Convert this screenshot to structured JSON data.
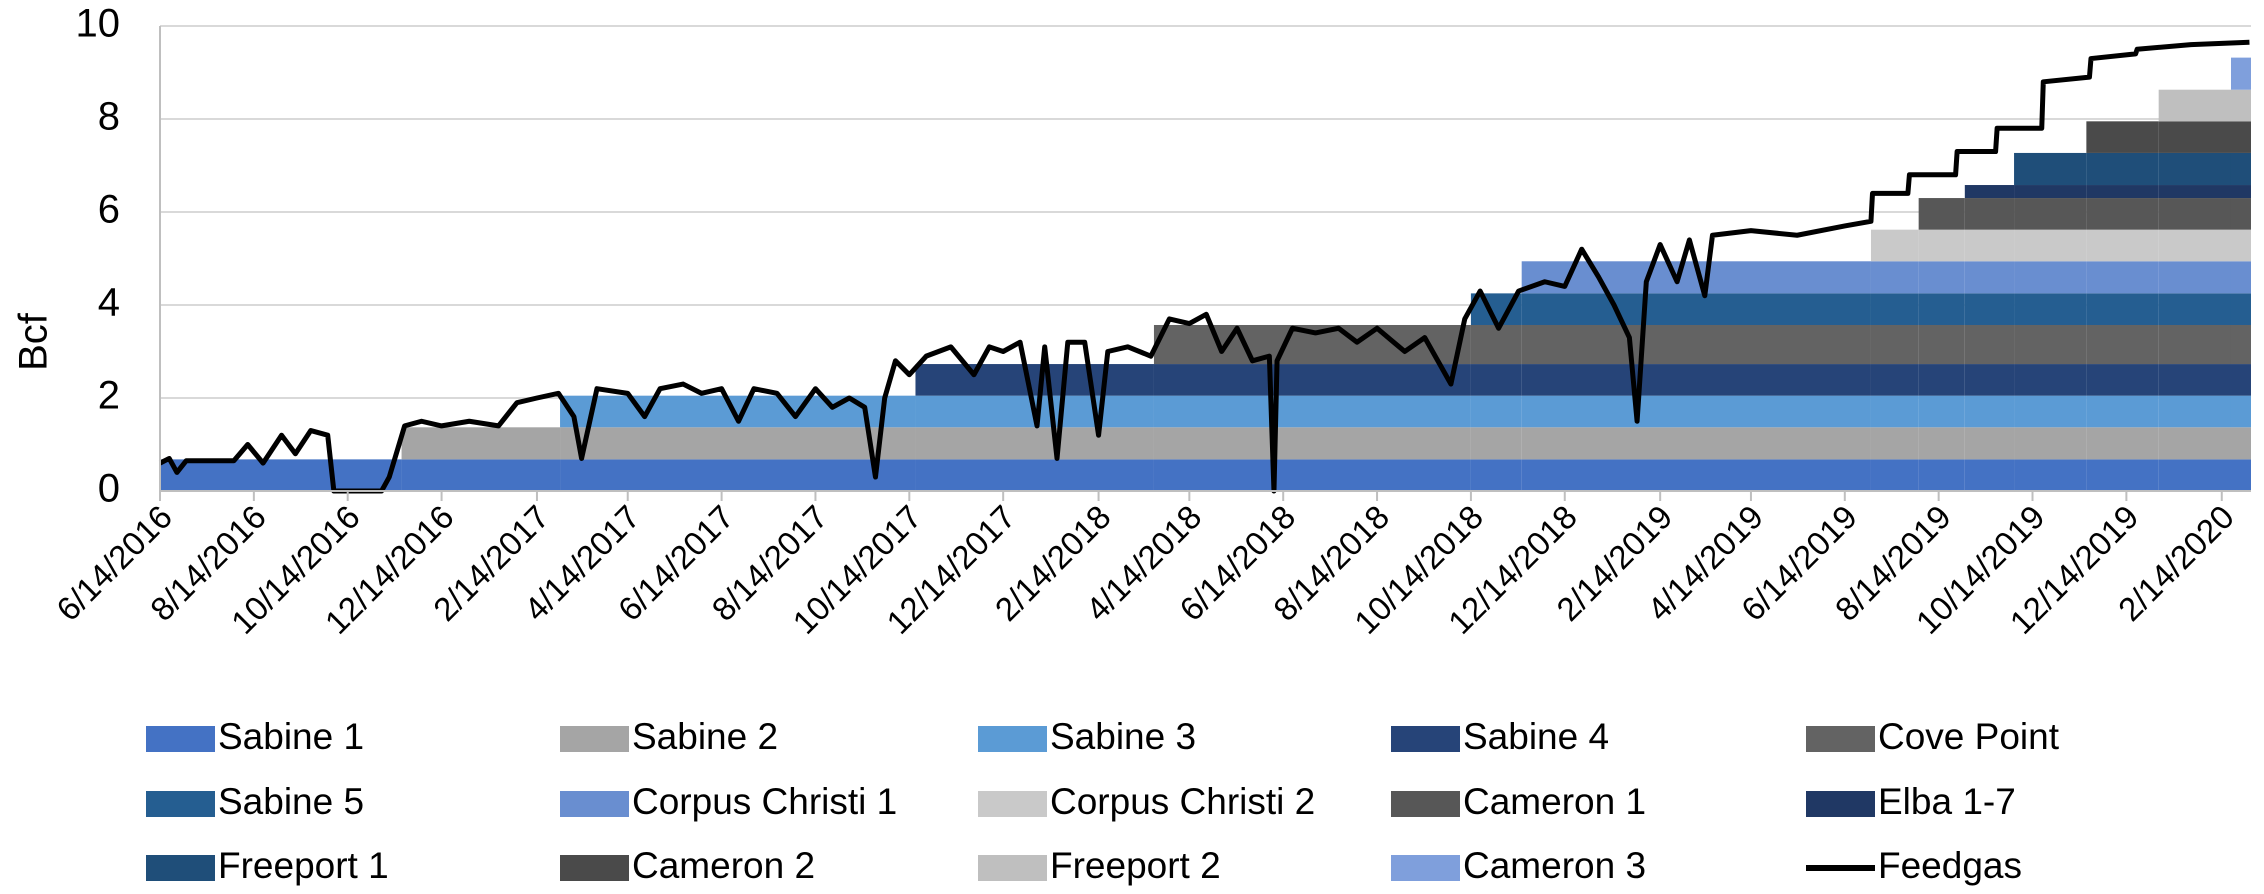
{
  "chart_data": {
    "type": "stacked-step-area",
    "ylabel": "Bcf",
    "ylim": [
      0,
      10
    ],
    "yticks": [
      0,
      2,
      4,
      6,
      8,
      10
    ],
    "grid": true,
    "xlim": [
      "6/14/2016",
      "3/4/2020"
    ],
    "xticks": [
      "6/14/2016",
      "8/14/2016",
      "10/14/2016",
      "12/14/2016",
      "2/14/2017",
      "4/14/2017",
      "6/14/2017",
      "8/14/2017",
      "10/14/2017",
      "12/14/2017",
      "2/14/2018",
      "4/14/2018",
      "6/14/2018",
      "8/14/2018",
      "10/14/2018",
      "12/14/2018",
      "2/14/2019",
      "4/14/2019",
      "6/14/2019",
      "8/14/2019",
      "10/14/2019",
      "12/14/2019",
      "2/14/2020"
    ],
    "x": [
      "6/14/2016",
      "11/18/2016",
      "3/1/2017",
      "10/18/2017",
      "3/22/2018",
      "10/14/2018",
      "11/16/2018",
      "7/1/2019",
      "8/1/2019",
      "8/31/2019",
      "10/2/2019",
      "11/18/2019",
      "1/4/2020",
      "2/20/2020"
    ],
    "series": [
      {
        "name": "Sabine 1",
        "color": "#4472c4",
        "values": [
          0.68,
          0.68,
          0.68,
          0.68,
          0.68,
          0.68,
          0.68,
          0.68,
          0.68,
          0.68,
          0.68,
          0.68,
          0.68,
          0.68
        ]
      },
      {
        "name": "Sabine 2",
        "color": "#a5a5a5",
        "values": [
          0,
          0.69,
          0.69,
          0.69,
          0.69,
          0.69,
          0.69,
          0.69,
          0.69,
          0.69,
          0.69,
          0.69,
          0.69,
          0.69
        ]
      },
      {
        "name": "Sabine 3",
        "color": "#5b9bd5",
        "values": [
          0,
          0,
          0.68,
          0.68,
          0.68,
          0.68,
          0.68,
          0.68,
          0.68,
          0.68,
          0.68,
          0.68,
          0.68,
          0.68
        ]
      },
      {
        "name": "Sabine 4",
        "color": "#264478",
        "values": [
          0,
          0,
          0,
          0.68,
          0.68,
          0.68,
          0.68,
          0.68,
          0.68,
          0.68,
          0.68,
          0.68,
          0.68,
          0.68
        ]
      },
      {
        "name": "Cove Point",
        "color": "#636363",
        "values": [
          0,
          0,
          0,
          0,
          0.84,
          0.84,
          0.84,
          0.84,
          0.84,
          0.84,
          0.84,
          0.84,
          0.84,
          0.84
        ]
      },
      {
        "name": "Sabine  5",
        "color": "#255e91",
        "values": [
          0,
          0,
          0,
          0,
          0,
          0.68,
          0.68,
          0.68,
          0.68,
          0.68,
          0.68,
          0.68,
          0.68,
          0.68
        ]
      },
      {
        "name": "Corpus Christi 1",
        "color": "#698ed0",
        "values": [
          0,
          0,
          0,
          0,
          0,
          0,
          0.69,
          0.69,
          0.69,
          0.69,
          0.69,
          0.69,
          0.69,
          0.69
        ]
      },
      {
        "name": "Corpus Christi 2",
        "color": "#c9c9c9",
        "values": [
          0,
          0,
          0,
          0,
          0,
          0,
          0,
          0.68,
          0.68,
          0.68,
          0.68,
          0.68,
          0.68,
          0.68
        ]
      },
      {
        "name": "Cameron 1",
        "color": "#575757",
        "values": [
          0,
          0,
          0,
          0,
          0,
          0,
          0,
          0,
          0.68,
          0.68,
          0.68,
          0.68,
          0.68,
          0.68
        ]
      },
      {
        "name": "Elba 1-7",
        "color": "#203864",
        "values": [
          0,
          0,
          0,
          0,
          0,
          0,
          0,
          0,
          0,
          0.28,
          0.28,
          0.28,
          0.28,
          0.28
        ]
      },
      {
        "name": "Freeport 1",
        "color": "#1f4e79",
        "values": [
          0,
          0,
          0,
          0,
          0,
          0,
          0,
          0,
          0,
          0,
          0.69,
          0.69,
          0.69,
          0.69
        ]
      },
      {
        "name": "Cameron 2",
        "color": "#4a4a4a",
        "values": [
          0,
          0,
          0,
          0,
          0,
          0,
          0,
          0,
          0,
          0,
          0,
          0.68,
          0.68,
          0.68
        ]
      },
      {
        "name": "Freeport 2",
        "color": "#bfbfbf",
        "values": [
          0,
          0,
          0,
          0,
          0,
          0,
          0,
          0,
          0,
          0,
          0,
          0,
          0.68,
          0.68
        ]
      },
      {
        "name": "Cameron 3",
        "color": "#7f9fdc",
        "values": [
          0,
          0,
          0,
          0,
          0,
          0,
          0,
          0,
          0,
          0,
          0,
          0,
          0,
          0.69
        ]
      }
    ],
    "feedgas": {
      "name": "Feedgas",
      "color": "#000000",
      "x": [
        "6/14/2016",
        "6/20/2016",
        "6/25/2016",
        "7/1/2016",
        "8/1/2016",
        "8/10/2016",
        "8/20/2016",
        "9/1/2016",
        "9/10/2016",
        "9/20/2016",
        "10/1/2016",
        "10/5/2016",
        "11/5/2016",
        "11/10/2016",
        "11/20/2016",
        "12/1/2016",
        "12/14/2016",
        "1/1/2017",
        "1/20/2017",
        "2/1/2017",
        "2/14/2017",
        "2/28/2017",
        "3/10/2017",
        "3/15/2017",
        "3/25/2017",
        "4/14/2017",
        "4/25/2017",
        "5/5/2017",
        "5/20/2017",
        "6/1/2017",
        "6/14/2017",
        "6/25/2017",
        "7/5/2017",
        "7/20/2017",
        "8/1/2017",
        "8/14/2017",
        "8/25/2017",
        "9/5/2017",
        "9/15/2017",
        "9/22/2017",
        "9/28/2017",
        "10/5/2017",
        "10/14/2017",
        "10/25/2017",
        "11/10/2017",
        "11/25/2017",
        "12/5/2017",
        "12/14/2017",
        "12/25/2017",
        "1/5/2018",
        "1/10/2018",
        "1/18/2018",
        "1/25/2018",
        "2/5/2018",
        "2/14/2018",
        "2/20/2018",
        "3/5/2018",
        "3/20/2018",
        "4/1/2018",
        "4/14/2018",
        "4/25/2018",
        "5/5/2018",
        "5/15/2018",
        "5/25/2018",
        "6/5/2018",
        "6/8/2018",
        "6/10/2018",
        "6/20/2018",
        "7/5/2018",
        "7/20/2018",
        "8/1/2018",
        "8/14/2018",
        "9/1/2018",
        "9/14/2018",
        "10/1/2018",
        "10/10/2018",
        "10/20/2018",
        "11/1/2018",
        "11/14/2018",
        "12/1/2018",
        "12/14/2018",
        "12/25/2018",
        "1/5/2019",
        "1/15/2019",
        "1/25/2019",
        "1/30/2019",
        "2/5/2019",
        "2/14/2019",
        "2/25/2019",
        "3/5/2019",
        "3/15/2019",
        "3/20/2019",
        "4/14/2019",
        "5/14/2019",
        "6/14/2019",
        "7/1/2019",
        "7/2/2019",
        "7/25/2019",
        "7/26/2019",
        "8/25/2019",
        "8/26/2019",
        "9/20/2019",
        "9/21/2019",
        "10/20/2019",
        "10/21/2019",
        "11/20/2019",
        "11/21/2019",
        "12/20/2019",
        "12/21/2019",
        "1/25/2020",
        "3/3/2020"
      ],
      "values": [
        0.6,
        0.7,
        0.4,
        0.65,
        0.65,
        1.0,
        0.6,
        1.2,
        0.8,
        1.3,
        1.2,
        0,
        0,
        0.3,
        1.4,
        1.5,
        1.4,
        1.5,
        1.4,
        1.9,
        2.0,
        2.1,
        1.6,
        0.7,
        2.2,
        2.1,
        1.6,
        2.2,
        2.3,
        2.1,
        2.2,
        1.5,
        2.2,
        2.1,
        1.6,
        2.2,
        1.8,
        2.0,
        1.8,
        0.3,
        2.0,
        2.8,
        2.5,
        2.9,
        3.1,
        2.5,
        3.1,
        3.0,
        3.2,
        1.4,
        3.1,
        0.7,
        3.2,
        3.2,
        1.2,
        3.0,
        3.1,
        2.9,
        3.7,
        3.6,
        3.8,
        3.0,
        3.5,
        2.8,
        2.9,
        0,
        2.8,
        3.5,
        3.4,
        3.5,
        3.2,
        3.5,
        3.0,
        3.3,
        2.3,
        3.7,
        4.3,
        3.5,
        4.3,
        4.5,
        4.4,
        5.2,
        4.6,
        4.0,
        3.3,
        1.5,
        4.5,
        5.3,
        4.5,
        5.4,
        4.2,
        5.5,
        5.6,
        5.5,
        5.7,
        5.8,
        6.4,
        6.4,
        6.8,
        6.8,
        7.3,
        7.3,
        7.8,
        7.8,
        8.8,
        8.9,
        9.3,
        9.4,
        9.5,
        9.6,
        9.65
      ]
    }
  }
}
